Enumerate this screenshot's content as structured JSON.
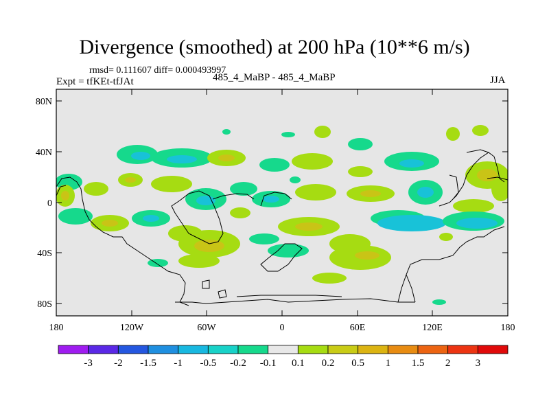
{
  "title": "Divergence (smoothed) at 200 hPa (10**6 m/s)",
  "stats": "rmsd= 0.111607 diff= 0.000493997",
  "expt": "Expt = tfKEt-tfJAt",
  "case": "485_4_MaBP - 485_4_MaBP",
  "season": "JJA",
  "axes": {
    "lat_ticks": [
      "80N",
      "40N",
      "0",
      "40S",
      "80S"
    ],
    "lon_ticks": [
      "180",
      "120W",
      "60W",
      "0",
      "60E",
      "120E",
      "180"
    ]
  },
  "colorbar": {
    "labels": [
      "-3",
      "-2",
      "-1.5",
      "-1",
      "-0.5",
      "-0.2",
      "-0.1",
      "0.1",
      "0.2",
      "0.5",
      "1",
      "1.5",
      "2",
      "3"
    ],
    "colors": [
      "#9f1cf0",
      "#5a28e6",
      "#2457e0",
      "#1f8fe0",
      "#18b8e0",
      "#18d2c8",
      "#16d98c",
      "#e8e8e8",
      "#a6dc12",
      "#c9cc16",
      "#dcb412",
      "#e88c12",
      "#ec6412",
      "#ec3412",
      "#e00a0a"
    ]
  },
  "colors": {
    "background": "#e6e6e6",
    "neg_light": "#16d98c",
    "neg_mid": "#18c2d8",
    "pos_light": "#a6dc12",
    "pos_mid": "#c9c416"
  }
}
